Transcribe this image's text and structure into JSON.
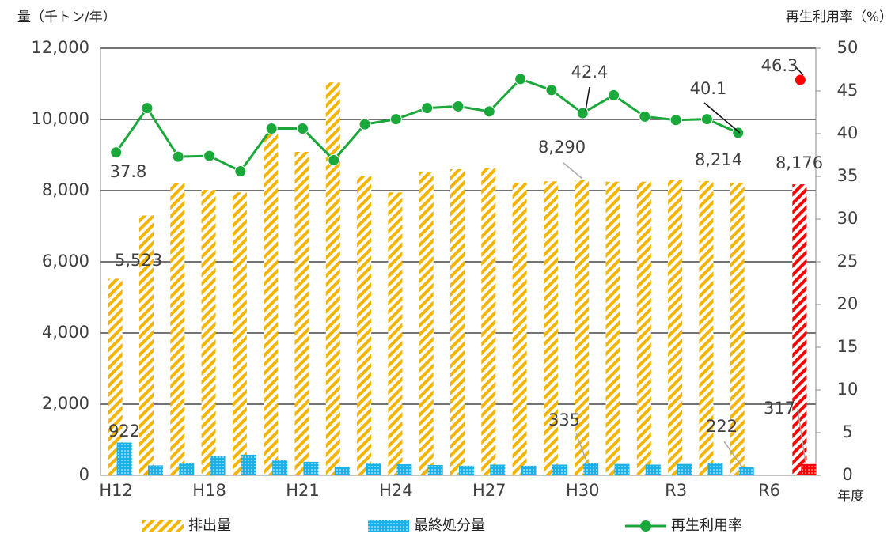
{
  "chart_data": {
    "type": "bar-line",
    "y_label": "量（千トン/年）",
    "y2_label": "再生利用率（%）",
    "x_label": "年度",
    "categories": [
      "H12",
      null,
      null,
      "H18",
      null,
      null,
      "H21",
      null,
      null,
      "H24",
      null,
      null,
      "H27",
      null,
      null,
      "H30",
      null,
      null,
      "R3",
      null,
      null,
      "R6",
      null
    ],
    "ylim": [
      0,
      12000
    ],
    "yticks": [
      0,
      {
        "value": 2000,
        "label": "2,000"
      },
      {
        "value": 4000,
        "label": "4,000"
      },
      {
        "value": 6000,
        "label": "6,000"
      },
      {
        "value": 8000,
        "label": "8,000"
      },
      {
        "value": 10000,
        "label": "10,000"
      },
      {
        "value": 12000,
        "label": "12,000"
      }
    ],
    "y2lim": [
      0,
      50
    ],
    "y2ticks": [
      0,
      5,
      10,
      15,
      20,
      25,
      30,
      35,
      40,
      45,
      50
    ],
    "grid": true,
    "series": [
      {
        "name": "排出量",
        "type": "bar",
        "color": "#f5b400",
        "colors": [
          "#f5b400",
          "#f5b400",
          "#f5b400",
          "#f5b400",
          "#f5b400",
          "#f5b400",
          "#f5b400",
          "#f5b400",
          "#f5b400",
          "#f5b400",
          "#f5b400",
          "#f5b400",
          "#f5b400",
          "#f5b400",
          "#f5b400",
          "#f5b400",
          "#f5b400",
          "#f5b400",
          "#f5b400",
          "#f5b400",
          "#f5b400",
          "#f5b400",
          "#ff0000"
        ],
        "values": [
          5523,
          7300,
          8200,
          8020,
          7950,
          9580,
          9090,
          11040,
          8400,
          7950,
          8510,
          8600,
          8640,
          8220,
          8260,
          8290,
          8250,
          8250,
          8310,
          8270,
          8214,
          null,
          8176
        ],
        "value_labels": [
          "5,523",
          null,
          null,
          null,
          null,
          null,
          null,
          null,
          null,
          null,
          null,
          null,
          null,
          null,
          null,
          "8,290",
          null,
          null,
          null,
          null,
          "8,214",
          null,
          "8,176"
        ]
      },
      {
        "name": "最終処分量",
        "type": "bar",
        "color": "#1ab0e8",
        "colors": [
          "#1ab0e8",
          "#1ab0e8",
          "#1ab0e8",
          "#1ab0e8",
          "#1ab0e8",
          "#1ab0e8",
          "#1ab0e8",
          "#1ab0e8",
          "#1ab0e8",
          "#1ab0e8",
          "#1ab0e8",
          "#1ab0e8",
          "#1ab0e8",
          "#1ab0e8",
          "#1ab0e8",
          "#1ab0e8",
          "#1ab0e8",
          "#1ab0e8",
          "#1ab0e8",
          "#1ab0e8",
          "#1ab0e8",
          "#1ab0e8",
          "#ff0000"
        ],
        "values": [
          922,
          280,
          340,
          550,
          580,
          420,
          380,
          240,
          330,
          310,
          290,
          270,
          300,
          270,
          300,
          335,
          320,
          300,
          320,
          350,
          222,
          null,
          317
        ],
        "value_labels": [
          null,
          null,
          null,
          null,
          null,
          null,
          null,
          null,
          null,
          null,
          null,
          null,
          null,
          null,
          null,
          null,
          null,
          null,
          null,
          null,
          null,
          null,
          null
        ]
      },
      {
        "name": "再生利用率",
        "type": "line",
        "axis": "y2",
        "color": "#1aa83a",
        "colors": [
          "#1aa83a",
          "#1aa83a",
          "#1aa83a",
          "#1aa83a",
          "#1aa83a",
          "#1aa83a",
          "#1aa83a",
          "#1aa83a",
          "#1aa83a",
          "#1aa83a",
          "#1aa83a",
          "#1aa83a",
          "#1aa83a",
          "#1aa83a",
          "#1aa83a",
          "#1aa83a",
          "#1aa83a",
          "#1aa83a",
          "#1aa83a",
          "#1aa83a",
          "#1aa83a",
          "#1aa83a",
          "#ff0000"
        ],
        "values": [
          37.8,
          43.0,
          37.3,
          37.4,
          35.6,
          40.6,
          40.6,
          36.9,
          41.1,
          41.7,
          43.0,
          43.2,
          42.6,
          46.4,
          45.1,
          42.4,
          44.5,
          42.0,
          41.6,
          41.7,
          40.1,
          null,
          46.3
        ]
      }
    ]
  }
}
